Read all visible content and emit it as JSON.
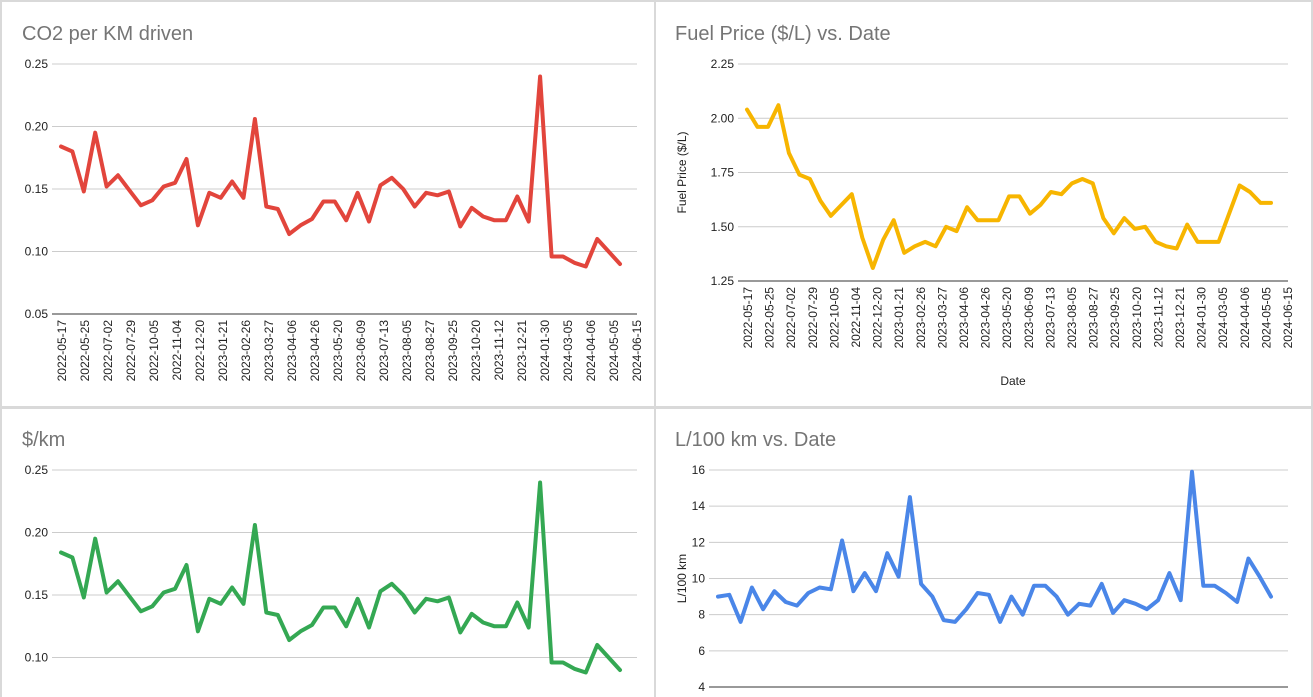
{
  "chart_data": [
    {
      "type": "line",
      "title": "CO2 per KM driven",
      "xlabel": "",
      "ylabel": "",
      "ylim": [
        0.05,
        0.25
      ],
      "yticks": [
        "0.25",
        "0.20",
        "0.15",
        "0.10",
        "0.05"
      ],
      "color": "#e2453c",
      "grid": true,
      "legend": "none",
      "xtick_labels": [
        "2022-05-17",
        "2022-05-25",
        "2022-07-02",
        "2022-07-29",
        "2022-10-05",
        "2022-11-04",
        "2022-12-20",
        "2023-01-21",
        "2023-02-26",
        "2023-03-27",
        "2023-04-06",
        "2023-04-26",
        "2023-05-20",
        "2023-06-09",
        "2023-07-13",
        "2023-08-05",
        "2023-08-27",
        "2023-09-25",
        "2023-10-20",
        "2023-11-12",
        "2023-12-21",
        "2024-01-30",
        "2024-03-05",
        "2024-04-06",
        "2024-05-05",
        "2024-06-15"
      ],
      "series": [
        {
          "values": [
            0.184,
            0.18,
            0.148,
            0.195,
            0.152,
            0.161,
            0.149,
            0.137,
            0.141,
            0.152,
            0.155,
            0.174,
            0.121,
            0.147,
            0.143,
            0.156,
            0.143,
            0.206,
            0.136,
            0.134,
            0.114,
            0.121,
            0.126,
            0.14,
            0.14,
            0.125,
            0.147,
            0.124,
            0.153,
            0.159,
            0.15,
            0.136,
            0.147,
            0.145,
            0.148,
            0.12,
            0.135,
            0.128,
            0.125,
            0.125,
            0.144,
            0.124,
            0.24,
            0.096,
            0.096,
            0.091,
            0.088,
            0.11,
            0.1,
            0.09
          ]
        }
      ]
    },
    {
      "type": "line",
      "title": "Fuel Price ($/L) vs. Date",
      "xlabel": "Date",
      "ylabel": "Fuel Price ($/L)",
      "ylim": [
        1.25,
        2.25
      ],
      "yticks": [
        "2.25",
        "2.00",
        "1.75",
        "1.50",
        "1.25"
      ],
      "color": "#f7b500",
      "grid": true,
      "legend": "none",
      "xtick_labels": [
        "2022-05-17",
        "2022-05-25",
        "2022-07-02",
        "2022-07-29",
        "2022-10-05",
        "2022-11-04",
        "2022-12-20",
        "2023-01-21",
        "2023-02-26",
        "2023-03-27",
        "2023-04-06",
        "2023-04-26",
        "2023-05-20",
        "2023-06-09",
        "2023-07-13",
        "2023-08-05",
        "2023-08-27",
        "2023-09-25",
        "2023-10-20",
        "2023-11-12",
        "2023-12-21",
        "2024-01-30",
        "2024-03-05",
        "2024-04-06",
        "2024-05-05",
        "2024-06-15"
      ],
      "series": [
        {
          "values": [
            2.04,
            1.96,
            1.96,
            2.06,
            1.84,
            1.74,
            1.72,
            1.62,
            1.55,
            1.6,
            1.65,
            1.45,
            1.31,
            1.44,
            1.53,
            1.38,
            1.41,
            1.43,
            1.41,
            1.5,
            1.48,
            1.59,
            1.53,
            1.53,
            1.53,
            1.64,
            1.64,
            1.56,
            1.6,
            1.66,
            1.65,
            1.7,
            1.72,
            1.7,
            1.54,
            1.47,
            1.54,
            1.49,
            1.5,
            1.43,
            1.41,
            1.4,
            1.51,
            1.43,
            1.43,
            1.43,
            1.56,
            1.69,
            1.66,
            1.61,
            1.61
          ]
        }
      ]
    },
    {
      "type": "line",
      "title": "$/km",
      "xlabel": "",
      "ylabel": "",
      "ylim": [
        0.05,
        0.25
      ],
      "yticks": [
        "0.25",
        "0.20",
        "0.15",
        "0.10"
      ],
      "color": "#34a853",
      "grid": true,
      "legend": "none",
      "series": [
        {
          "values": [
            0.184,
            0.18,
            0.148,
            0.195,
            0.152,
            0.161,
            0.149,
            0.137,
            0.141,
            0.152,
            0.155,
            0.174,
            0.121,
            0.147,
            0.143,
            0.156,
            0.143,
            0.206,
            0.136,
            0.134,
            0.114,
            0.121,
            0.126,
            0.14,
            0.14,
            0.125,
            0.147,
            0.124,
            0.153,
            0.159,
            0.15,
            0.136,
            0.147,
            0.145,
            0.148,
            0.12,
            0.135,
            0.128,
            0.125,
            0.125,
            0.144,
            0.124,
            0.24,
            0.096,
            0.096,
            0.091,
            0.088,
            0.11,
            0.1,
            0.09
          ]
        }
      ]
    },
    {
      "type": "line",
      "title": "L/100 km vs. Date",
      "xlabel": "",
      "ylabel": "L/100 km",
      "ylim": [
        4,
        16
      ],
      "yticks": [
        "16",
        "14",
        "12",
        "10",
        "8",
        "6",
        "4"
      ],
      "color": "#4a86e8",
      "grid": true,
      "legend": "none",
      "series": [
        {
          "values": [
            9.0,
            9.1,
            7.6,
            9.5,
            8.3,
            9.3,
            8.7,
            8.5,
            9.2,
            9.5,
            9.4,
            12.1,
            9.3,
            10.3,
            9.3,
            11.4,
            10.1,
            14.5,
            9.7,
            9.0,
            7.7,
            7.6,
            8.3,
            9.2,
            9.1,
            7.6,
            9.0,
            8.0,
            9.6,
            9.6,
            9.0,
            8.0,
            8.6,
            8.5,
            9.7,
            8.1,
            8.8,
            8.6,
            8.3,
            8.8,
            10.3,
            8.8,
            15.9,
            9.6,
            9.6,
            9.2,
            8.7,
            11.1,
            10.1,
            9.0
          ]
        }
      ]
    }
  ]
}
